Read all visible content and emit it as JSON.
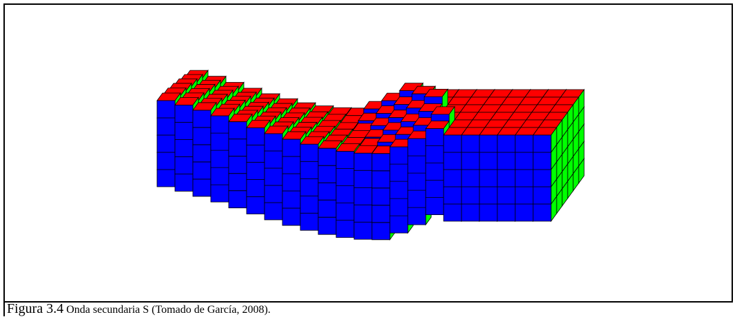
{
  "figure": {
    "label": "Figura 3.4",
    "caption": "Onda secundaria S (Tomado de García, 2008)."
  }
}
